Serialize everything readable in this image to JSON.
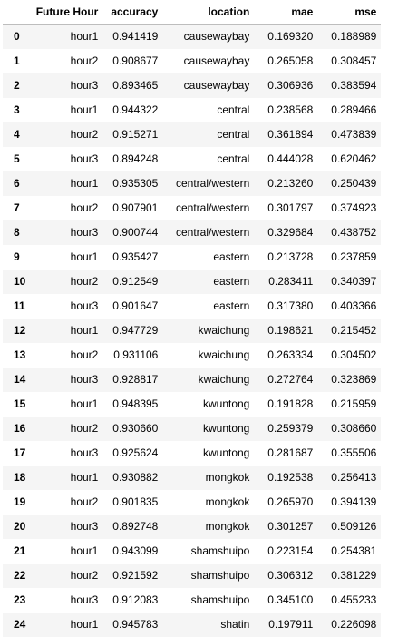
{
  "table": {
    "columns": [
      "",
      "Future Hour",
      "accuracy",
      "location",
      "mae",
      "mse"
    ],
    "rows": [
      [
        "0",
        "hour1",
        "0.941419",
        "causewaybay",
        "0.169320",
        "0.188989"
      ],
      [
        "1",
        "hour2",
        "0.908677",
        "causewaybay",
        "0.265058",
        "0.308457"
      ],
      [
        "2",
        "hour3",
        "0.893465",
        "causewaybay",
        "0.306936",
        "0.383594"
      ],
      [
        "3",
        "hour1",
        "0.944322",
        "central",
        "0.238568",
        "0.289466"
      ],
      [
        "4",
        "hour2",
        "0.915271",
        "central",
        "0.361894",
        "0.473839"
      ],
      [
        "5",
        "hour3",
        "0.894248",
        "central",
        "0.444028",
        "0.620462"
      ],
      [
        "6",
        "hour1",
        "0.935305",
        "central/western",
        "0.213260",
        "0.250439"
      ],
      [
        "7",
        "hour2",
        "0.907901",
        "central/western",
        "0.301797",
        "0.374923"
      ],
      [
        "8",
        "hour3",
        "0.900744",
        "central/western",
        "0.329684",
        "0.438752"
      ],
      [
        "9",
        "hour1",
        "0.935427",
        "eastern",
        "0.213728",
        "0.237859"
      ],
      [
        "10",
        "hour2",
        "0.912549",
        "eastern",
        "0.283411",
        "0.340397"
      ],
      [
        "11",
        "hour3",
        "0.901647",
        "eastern",
        "0.317380",
        "0.403366"
      ],
      [
        "12",
        "hour1",
        "0.947729",
        "kwaichung",
        "0.198621",
        "0.215452"
      ],
      [
        "13",
        "hour2",
        "0.931106",
        "kwaichung",
        "0.263334",
        "0.304502"
      ],
      [
        "14",
        "hour3",
        "0.928817",
        "kwaichung",
        "0.272764",
        "0.323869"
      ],
      [
        "15",
        "hour1",
        "0.948395",
        "kwuntong",
        "0.191828",
        "0.215959"
      ],
      [
        "16",
        "hour2",
        "0.930660",
        "kwuntong",
        "0.259379",
        "0.308660"
      ],
      [
        "17",
        "hour3",
        "0.925624",
        "kwuntong",
        "0.281687",
        "0.355506"
      ],
      [
        "18",
        "hour1",
        "0.930882",
        "mongkok",
        "0.192538",
        "0.256413"
      ],
      [
        "19",
        "hour2",
        "0.901835",
        "mongkok",
        "0.265970",
        "0.394139"
      ],
      [
        "20",
        "hour3",
        "0.892748",
        "mongkok",
        "0.301257",
        "0.509126"
      ],
      [
        "21",
        "hour1",
        "0.943099",
        "shamshuipo",
        "0.223154",
        "0.254381"
      ],
      [
        "22",
        "hour2",
        "0.921592",
        "shamshuipo",
        "0.306312",
        "0.381229"
      ],
      [
        "23",
        "hour3",
        "0.912083",
        "shamshuipo",
        "0.345100",
        "0.455233"
      ],
      [
        "24",
        "hour1",
        "0.945783",
        "shatin",
        "0.197911",
        "0.226098"
      ]
    ]
  }
}
